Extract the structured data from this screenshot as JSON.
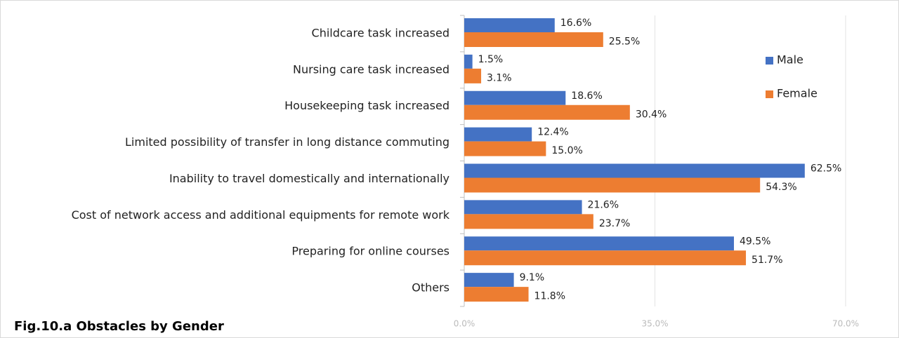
{
  "chart_data": {
    "type": "hbar",
    "title": "Fig.10.a    Obstacles by Gender",
    "categories": [
      "Childcare task increased",
      "Nursing care task increased",
      "Housekeeping task increased",
      "Limited possibility of transfer in long distance commuting",
      "Inability to travel domestically and internationally",
      "Cost of network access and additional equipments for remote work",
      "Preparing for online courses",
      "Others"
    ],
    "series": [
      {
        "name": "Male",
        "color": "#4472c4",
        "values": [
          16.6,
          1.5,
          18.6,
          12.4,
          62.5,
          21.6,
          49.5,
          9.1
        ],
        "value_labels": [
          "16.6%",
          "1.5%",
          "18.6%",
          "12.4%",
          "62.5%",
          "21.6%",
          "49.5%",
          "9.1%"
        ]
      },
      {
        "name": "Female",
        "color": "#ed7d31",
        "values": [
          25.5,
          3.1,
          30.4,
          15.0,
          54.3,
          23.7,
          51.7,
          11.8
        ],
        "value_labels": [
          "25.5%",
          "3.1%",
          "30.4%",
          "15.0%",
          "54.3%",
          "23.7%",
          "51.7%",
          "11.8%"
        ]
      }
    ],
    "xlim": [
      0,
      70
    ],
    "xticks": [
      {
        "value": 0,
        "label": "0.0%"
      },
      {
        "value": 35,
        "label": "35.0%"
      },
      {
        "value": 70,
        "label": "70.0%"
      }
    ],
    "grid": true,
    "legend_position": "right"
  }
}
